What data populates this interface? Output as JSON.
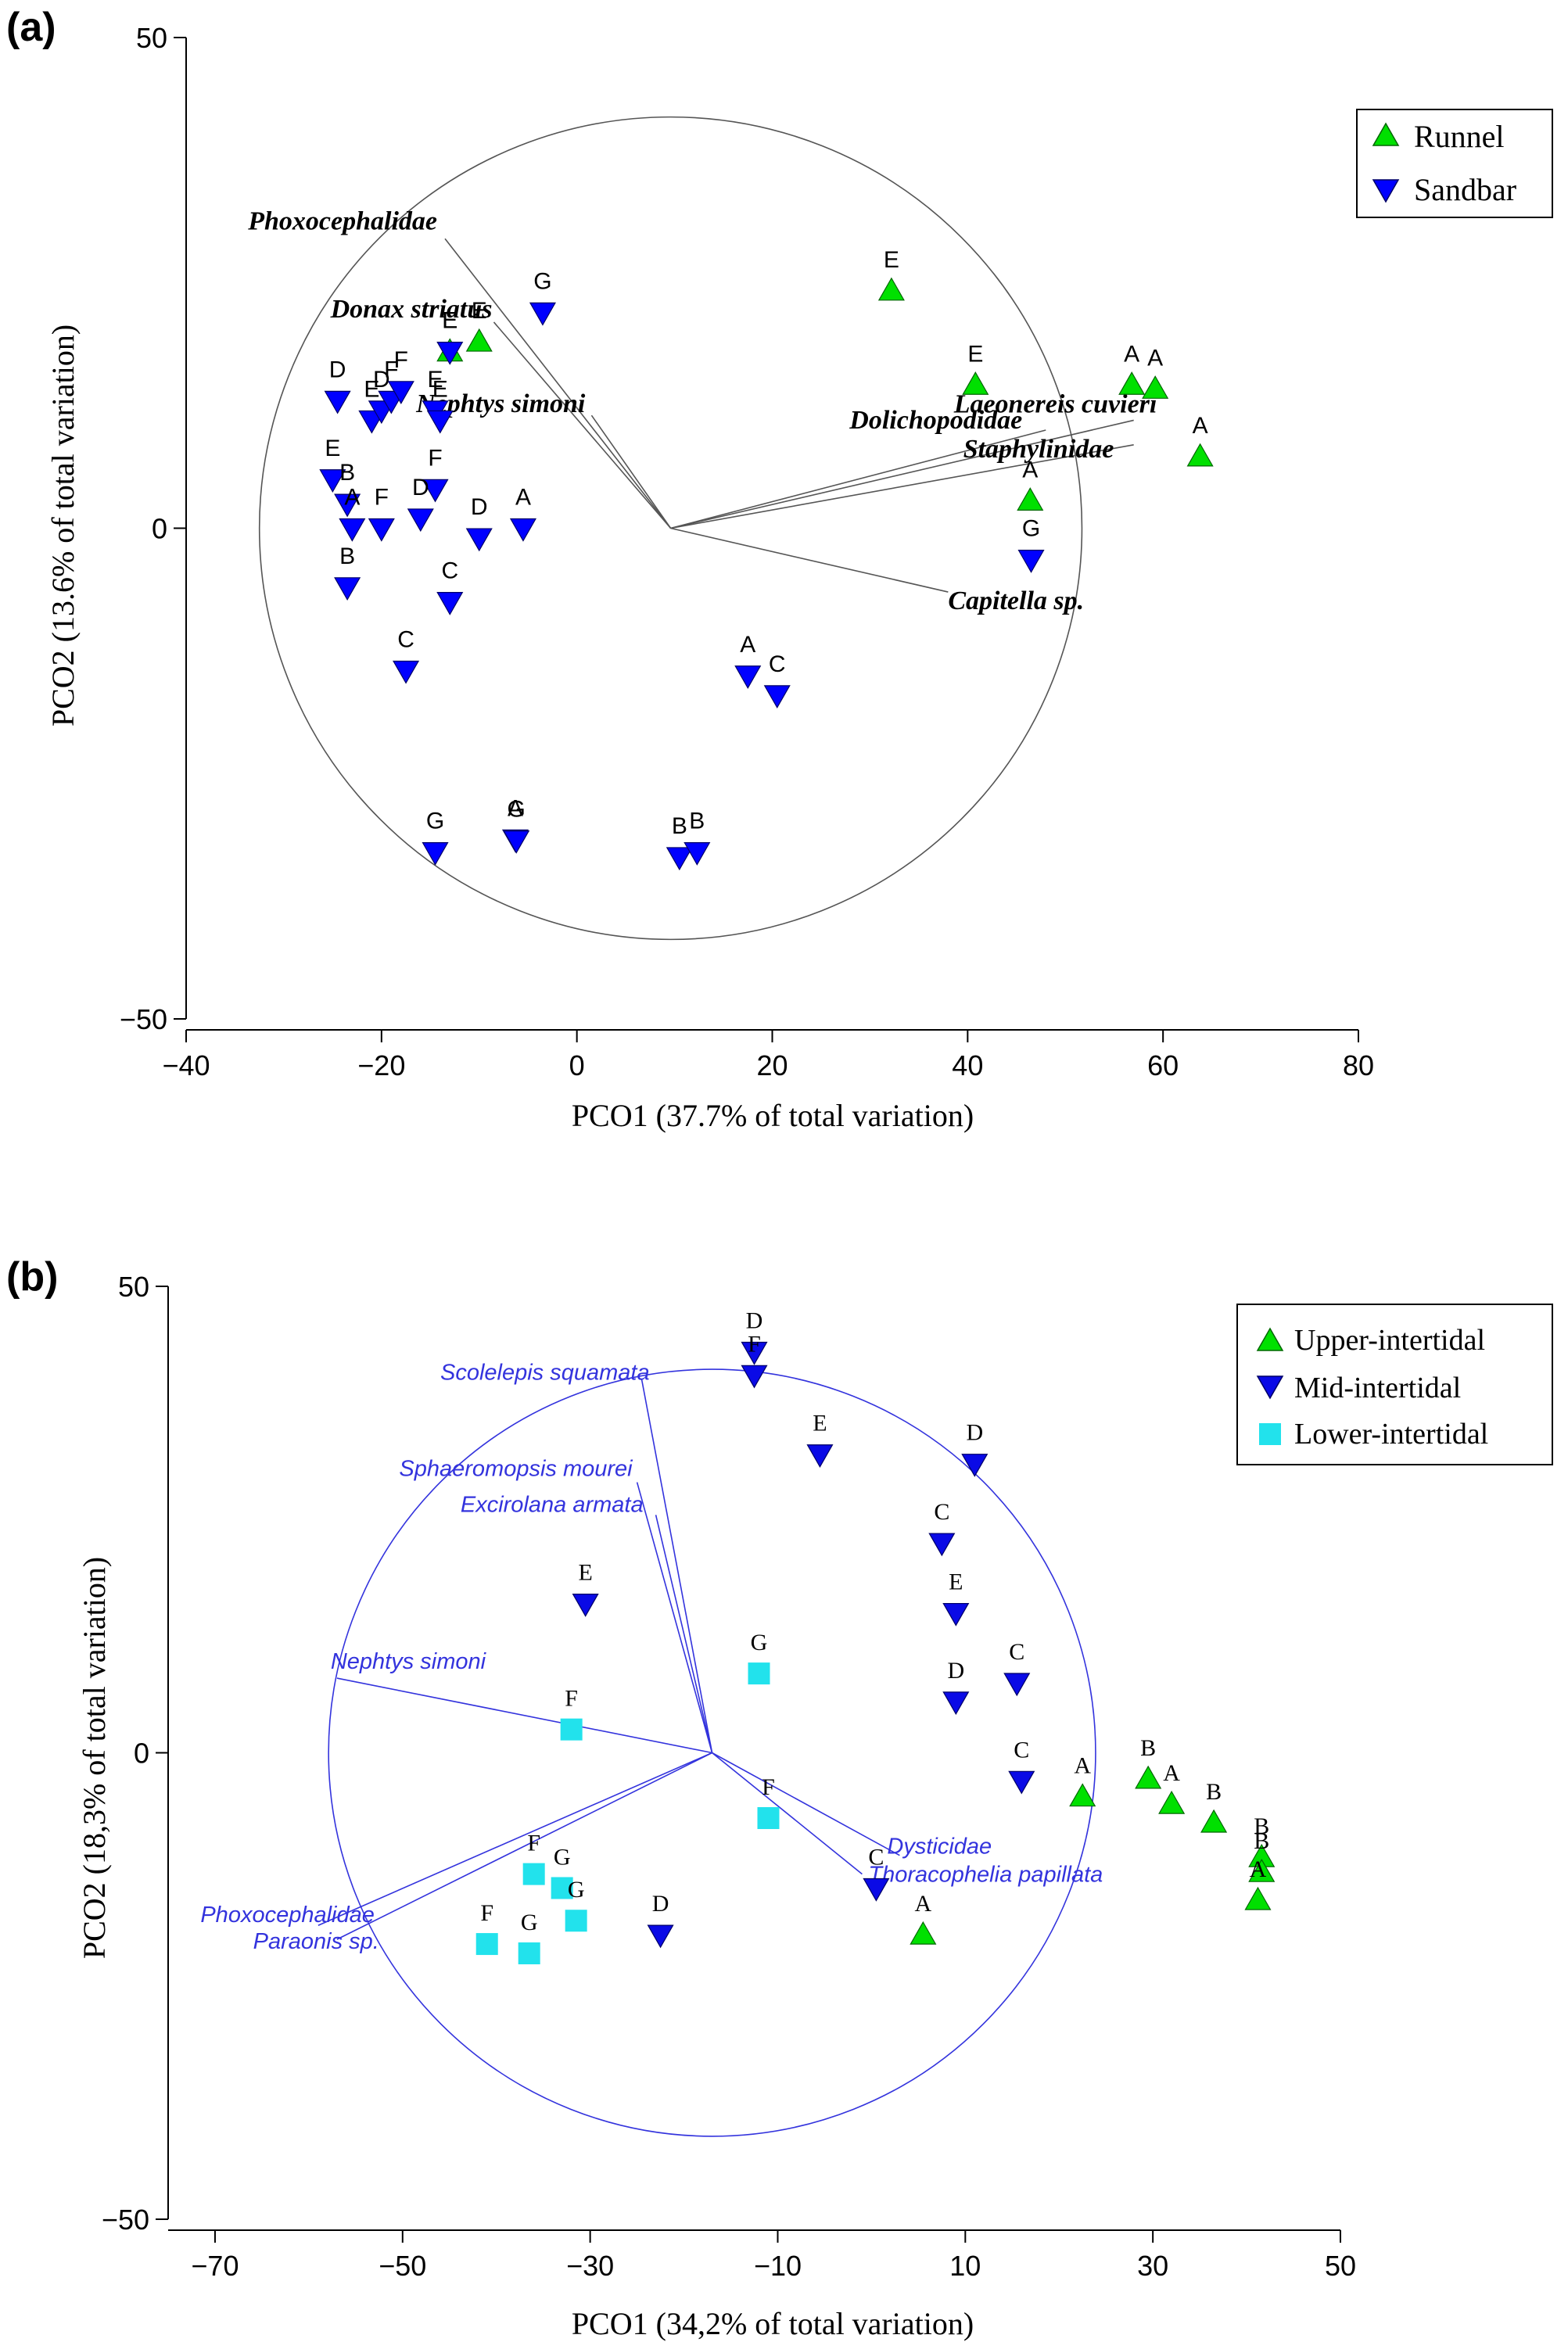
{
  "colors": {
    "runnel": "#00e000",
    "sandbar": "#0000ff",
    "upper": "#00e000",
    "mid": "#0a0ae6",
    "lower": "#22e2ec",
    "vector_a": "#555555",
    "vector_b": "#3333dd",
    "circle_a": "#555555",
    "circle_b": "#3333dd",
    "axis": "#000000"
  },
  "chart_data": [
    {
      "type": "scatter",
      "panel_label": "(a)",
      "xlabel": "PCO1 (37.7% of total variation)",
      "ylabel": "PCO2 (13.6% of total variation)",
      "xlim": [
        -40,
        80
      ],
      "ylim": [
        -50,
        50
      ],
      "xticks": [
        -40,
        -20,
        0,
        20,
        40,
        60,
        80
      ],
      "yticks": [
        -50,
        0,
        50
      ],
      "xtick_labels": [
        "−40",
        "−20",
        "0",
        "20",
        "40",
        "60",
        "80"
      ],
      "ytick_labels": [
        "−50",
        "0",
        "50"
      ],
      "legend_position": "top-right",
      "legend": [
        {
          "name": "Runnel",
          "marker": "triangle-up",
          "color_key": "runnel"
        },
        {
          "name": "Sandbar",
          "marker": "triangle-down",
          "color_key": "sandbar"
        }
      ],
      "circle": {
        "cx": 9.6,
        "cy": 0,
        "r": 42
      },
      "vectors": [
        {
          "label": "Phoxocephalidae",
          "x": -13.5,
          "y": 29.5
        },
        {
          "label": "Donax striatus",
          "x": -8.5,
          "y": 21
        },
        {
          "label": "Nephtys simoni",
          "x": 1.5,
          "y": 11.5
        },
        {
          "label": "Dolichopodidae",
          "x": 48,
          "y": 10
        },
        {
          "label": "Laeonereis cuvieri",
          "x": 57,
          "y": 11
        },
        {
          "label": "Staphylinidae",
          "x": 57,
          "y": 8.5
        },
        {
          "label": "Capitella sp.",
          "x": 38,
          "y": -6.5
        }
      ],
      "series": [
        {
          "name": "Runnel",
          "marker": "triangle-up",
          "points": [
            {
              "x": 32.2,
              "y": 24.2,
              "label": "E"
            },
            {
              "x": 40.8,
              "y": 14.6,
              "label": "E"
            },
            {
              "x": 56.8,
              "y": 14.6,
              "label": "A"
            },
            {
              "x": 59.2,
              "y": 14.2,
              "label": "A"
            },
            {
              "x": 63.8,
              "y": 7.3,
              "label": "A"
            },
            {
              "x": 46.4,
              "y": 2.8,
              "label": "A"
            },
            {
              "x": -13,
              "y": 18,
              "label": "E"
            },
            {
              "x": -10,
              "y": 19,
              "label": "E"
            }
          ]
        },
        {
          "name": "Sandbar",
          "marker": "triangle-down",
          "points": [
            {
              "x": -3.5,
              "y": 22,
              "label": "G"
            },
            {
              "x": -13,
              "y": 18,
              "label": "E"
            },
            {
              "x": -24.5,
              "y": 13,
              "label": "D"
            },
            {
              "x": -21,
              "y": 11,
              "label": "E"
            },
            {
              "x": -20,
              "y": 12,
              "label": "D"
            },
            {
              "x": -19,
              "y": 13,
              "label": "F"
            },
            {
              "x": -18,
              "y": 14,
              "label": "F"
            },
            {
              "x": -14.5,
              "y": 12,
              "label": "E"
            },
            {
              "x": -14,
              "y": 11,
              "label": "E"
            },
            {
              "x": -25,
              "y": 5,
              "label": "E"
            },
            {
              "x": -23.5,
              "y": 2.5,
              "label": "B"
            },
            {
              "x": -23,
              "y": 0,
              "label": "A"
            },
            {
              "x": -20,
              "y": 0,
              "label": "F"
            },
            {
              "x": -14.5,
              "y": 4,
              "label": "F"
            },
            {
              "x": -16,
              "y": 1,
              "label": "D"
            },
            {
              "x": -10,
              "y": -1,
              "label": "D"
            },
            {
              "x": -5.5,
              "y": 0,
              "label": "A"
            },
            {
              "x": -23.5,
              "y": -6,
              "label": "B"
            },
            {
              "x": -13,
              "y": -7.5,
              "label": "C"
            },
            {
              "x": -17.5,
              "y": -14.5,
              "label": "C"
            },
            {
              "x": 17.5,
              "y": -15,
              "label": "A"
            },
            {
              "x": 20.5,
              "y": -17,
              "label": "C"
            },
            {
              "x": 46.5,
              "y": -3.2,
              "label": "G"
            },
            {
              "x": -14.5,
              "y": -33,
              "label": "G"
            },
            {
              "x": -6.3,
              "y": -31.7,
              "label": "A"
            },
            {
              "x": -6.2,
              "y": -31.8,
              "label": "G"
            },
            {
              "x": 10.5,
              "y": -33.5,
              "label": "B"
            },
            {
              "x": 12.3,
              "y": -33,
              "label": "B"
            }
          ]
        }
      ]
    },
    {
      "type": "scatter",
      "panel_label": "(b)",
      "xlabel": "PCO1 (34,2% of total variation)",
      "ylabel": "PCO2 (18,3% of total variation)",
      "xlim": [
        -75,
        50
      ],
      "ylim": [
        -50,
        50
      ],
      "xticks": [
        -70,
        -50,
        -30,
        -10,
        10,
        30,
        50
      ],
      "yticks": [
        -50,
        0,
        50
      ],
      "xtick_labels": [
        "−70",
        "−50",
        "−30",
        "−10",
        "10",
        "30",
        "50"
      ],
      "ytick_labels": [
        "−50",
        "0",
        "50"
      ],
      "legend_position": "top-right",
      "legend": [
        {
          "name": "Upper-intertidal",
          "marker": "triangle-up",
          "color_key": "upper"
        },
        {
          "name": "Mid-intertidal",
          "marker": "triangle-down",
          "color_key": "mid"
        },
        {
          "name": "Lower-intertidal",
          "marker": "square",
          "color_key": "lower"
        }
      ],
      "circle": {
        "cx": -17,
        "cy": 0,
        "r": 41
      },
      "vectors": [
        {
          "label": "Scolelepis squamata",
          "x": -24.5,
          "y": 40
        },
        {
          "label": "Sphaeromopsis mourei",
          "x": -25,
          "y": 29
        },
        {
          "label": "Excirolana armata",
          "x": -23,
          "y": 25.5
        },
        {
          "label": "Nephtys simoni",
          "x": -57,
          "y": 8
        },
        {
          "label": "Phoxocephalidae",
          "x": -59,
          "y": -18.5
        },
        {
          "label": "Paraonis sp.",
          "x": -57,
          "y": -20
        },
        {
          "label": "Dysticidae",
          "x": 3,
          "y": -11
        },
        {
          "label": "Thoracophelia papillata",
          "x": -1,
          "y": -13
        }
      ],
      "series": [
        {
          "name": "Upper-intertidal",
          "marker": "triangle-up",
          "points": [
            {
              "x": 22.5,
              "y": -4.7,
              "label": "A"
            },
            {
              "x": 29.5,
              "y": -2.8,
              "label": "B"
            },
            {
              "x": 32,
              "y": -5.5,
              "label": "A"
            },
            {
              "x": 36.5,
              "y": -7.5,
              "label": "B"
            },
            {
              "x": 41.6,
              "y": -11.2,
              "label": "B"
            },
            {
              "x": 41.6,
              "y": -12.8,
              "label": "B"
            },
            {
              "x": 41.2,
              "y": -15.8,
              "label": "A"
            },
            {
              "x": 5.5,
              "y": -19.5,
              "label": "A"
            }
          ]
        },
        {
          "name": "Mid-intertidal",
          "marker": "triangle-down",
          "points": [
            {
              "x": -12.5,
              "y": 43,
              "label": "D"
            },
            {
              "x": -12.5,
              "y": 40.5,
              "label": "F"
            },
            {
              "x": -5.5,
              "y": 32,
              "label": "E"
            },
            {
              "x": 11,
              "y": 31,
              "label": "D"
            },
            {
              "x": 7.5,
              "y": 22.5,
              "label": "C"
            },
            {
              "x": 9,
              "y": 15,
              "label": "E"
            },
            {
              "x": -30.5,
              "y": 16,
              "label": "E"
            },
            {
              "x": 15.5,
              "y": 7.5,
              "label": "C"
            },
            {
              "x": 9,
              "y": 5.5,
              "label": "D"
            },
            {
              "x": 16,
              "y": -3,
              "label": "C"
            },
            {
              "x": 0.5,
              "y": -14.5,
              "label": "C"
            },
            {
              "x": -22.5,
              "y": -19.5,
              "label": "D"
            }
          ]
        },
        {
          "name": "Lower-intertidal",
          "marker": "square",
          "points": [
            {
              "x": -12,
              "y": 8.5,
              "label": "G"
            },
            {
              "x": -32,
              "y": 2.5,
              "label": "F"
            },
            {
              "x": -11,
              "y": -7,
              "label": "F"
            },
            {
              "x": -36,
              "y": -13,
              "label": "F"
            },
            {
              "x": -33,
              "y": -14.5,
              "label": "G"
            },
            {
              "x": -31.5,
              "y": -18,
              "label": "G"
            },
            {
              "x": -41,
              "y": -20.5,
              "label": "F"
            },
            {
              "x": -36.5,
              "y": -21.5,
              "label": "G"
            }
          ]
        }
      ]
    }
  ]
}
